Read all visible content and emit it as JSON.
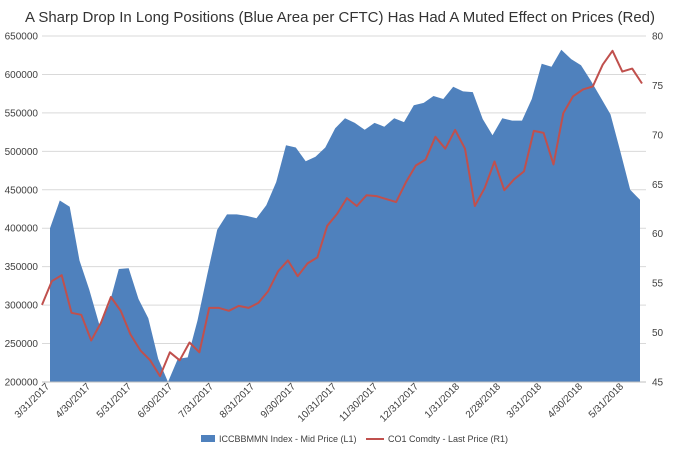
{
  "chart_data": {
    "type": "area+line",
    "title": "A Sharp Drop In Long Positions (Blue Area per CFTC) Has Had A Muted Effect on Prices (Red)",
    "x_labels": [
      "3/31/2017",
      "4/30/2017",
      "5/31/2017",
      "6/30/2017",
      "7/31/2017",
      "8/31/2017",
      "9/30/2017",
      "10/31/2017",
      "11/30/2017",
      "12/31/2017",
      "1/31/2018",
      "2/28/2018",
      "3/31/2018",
      "4/30/2018",
      "5/31/2018"
    ],
    "y_left": {
      "min": 200000,
      "max": 650000,
      "step": 50000,
      "ticks": [
        "200000",
        "250000",
        "300000",
        "350000",
        "400000",
        "450000",
        "500000",
        "550000",
        "600000",
        "650000"
      ]
    },
    "y_right": {
      "min": 45,
      "max": 80,
      "step": 5,
      "ticks": [
        "45",
        "50",
        "55",
        "60",
        "65",
        "70",
        "75",
        "80"
      ]
    },
    "grid": true,
    "legend_position": "bottom",
    "series": [
      {
        "name": "ICCBBMMN Index - Mid Price (L1)",
        "kind": "area",
        "axis": "left",
        "color": "#4f81bd",
        "values": [
          400000,
          436000,
          428000,
          358000,
          320000,
          275000,
          300000,
          347000,
          348000,
          308000,
          283000,
          230000,
          200000,
          230000,
          232000,
          280000,
          340000,
          398000,
          418000,
          418000,
          416000,
          413000,
          430000,
          460000,
          508000,
          505000,
          487000,
          493000,
          505000,
          530000,
          543000,
          537000,
          528000,
          537000,
          532000,
          543000,
          538000,
          560000,
          563000,
          572000,
          568000,
          584000,
          578000,
          577000,
          542000,
          521000,
          543000,
          540000,
          540000,
          568000,
          614000,
          610000,
          632000,
          620000,
          612000,
          592000,
          570000,
          548000,
          500000,
          450000,
          437000
        ]
      },
      {
        "name": "CO1 Comdty - Last Price (R1)",
        "kind": "line",
        "axis": "right",
        "color": "#c0504d",
        "values": [
          52.8,
          55.2,
          55.8,
          52.0,
          51.8,
          49.2,
          51.0,
          53.6,
          52.2,
          49.8,
          48.2,
          47.2,
          45.6,
          48.0,
          47.2,
          49.0,
          48.0,
          52.5,
          52.5,
          52.2,
          52.7,
          52.5,
          53.0,
          54.2,
          56.2,
          57.3,
          55.7,
          57.0,
          57.6,
          60.8,
          62.0,
          63.6,
          62.8,
          63.9,
          63.8,
          63.5,
          63.2,
          65.2,
          66.9,
          67.5,
          69.8,
          68.6,
          70.5,
          68.6,
          62.8,
          64.6,
          67.3,
          64.4,
          65.5,
          66.3,
          70.4,
          70.2,
          67.0,
          72.2,
          73.9,
          74.6,
          74.9,
          77.1,
          78.5,
          76.4,
          76.7,
          75.2
        ]
      }
    ]
  }
}
